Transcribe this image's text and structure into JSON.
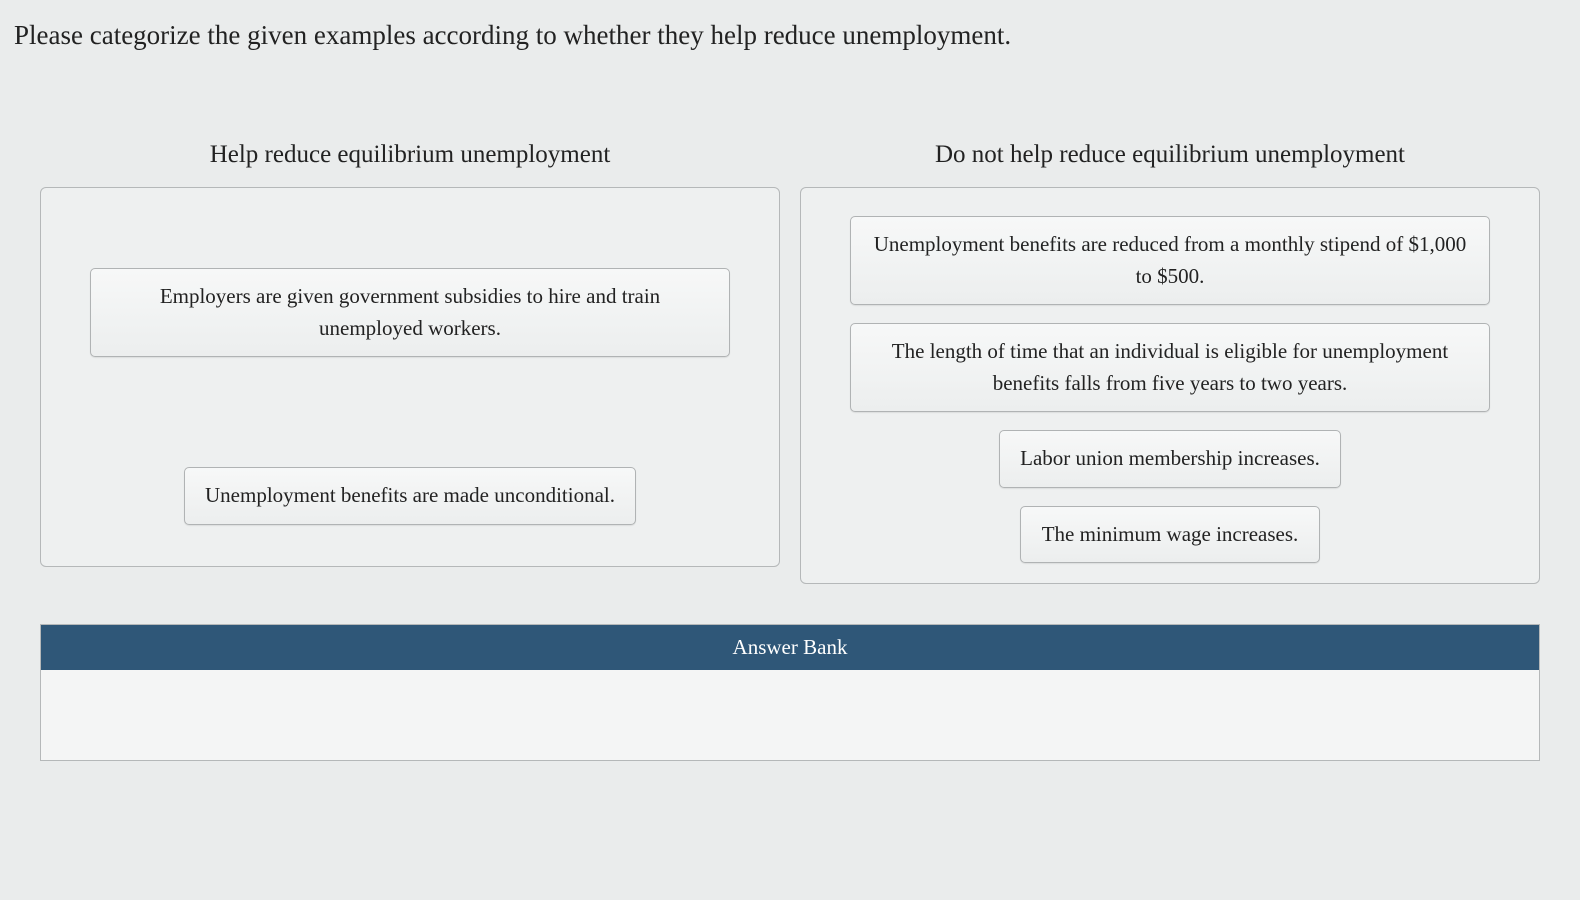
{
  "question_text": "Please categorize the given examples according to whether they help reduce unemployment.",
  "columns": {
    "left": {
      "title": "Help reduce equilibrium unemployment",
      "items": [
        "Employers are given government subsidies to hire and train unemployed workers.",
        "Unemployment benefits are made unconditional."
      ]
    },
    "right": {
      "title": "Do not help reduce equilibrium unemployment",
      "items": [
        "Unemployment benefits are reduced from a monthly stipend of $1,000 to $500.",
        "The length of time that an individual is eligible for unemployment benefits falls from five years to two years.",
        "Labor union membership increases.",
        "The minimum wage increases."
      ]
    }
  },
  "answer_bank_label": "Answer Bank",
  "colors": {
    "page_bg": "#eaecec",
    "zone_border": "#b5b8b9",
    "zone_bg": "#eef0f0",
    "item_border": "#b0b3b4",
    "bank_header_bg": "#2f5778",
    "bank_header_fg": "#ffffff"
  }
}
